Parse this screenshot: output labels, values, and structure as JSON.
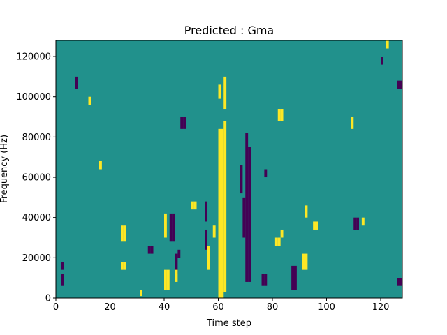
{
  "chart_data": {
    "type": "heatmap",
    "title": "Predicted : Gma",
    "xlabel": "Time step",
    "ylabel": "Frequency (Hz)",
    "xlim": [
      0,
      128
    ],
    "ylim": [
      0,
      128000
    ],
    "x_ticks": [
      0,
      20,
      40,
      60,
      80,
      100,
      120
    ],
    "y_ticks": [
      0,
      20000,
      40000,
      60000,
      80000,
      100000,
      120000
    ],
    "grid": false,
    "colormap": "viridis",
    "value_scale": "three discrete levels: low (dark purple), mid (teal, background), high (yellow)",
    "colors": {
      "low": "#440154",
      "mid": "#21918c",
      "high": "#fde725"
    },
    "background_level": "mid",
    "segments_note": "Each segment is [time_step, start_frequency_Hz, end_frequency_Hz, level]; cells not listed are mid level.",
    "segments": [
      [
        60,
        0,
        84000,
        "high"
      ],
      [
        61,
        0,
        84000,
        "high"
      ],
      [
        62,
        3000,
        88000,
        "high"
      ],
      [
        60,
        99000,
        106000,
        "high"
      ],
      [
        62,
        94000,
        110000,
        "high"
      ],
      [
        70,
        8000,
        82000,
        "low"
      ],
      [
        71,
        8000,
        75000,
        "low"
      ],
      [
        68,
        52000,
        66000,
        "low"
      ],
      [
        69,
        30000,
        50000,
        "low"
      ],
      [
        42,
        28000,
        42000,
        "low"
      ],
      [
        43,
        28000,
        42000,
        "low"
      ],
      [
        44,
        12000,
        22000,
        "low"
      ],
      [
        45,
        20000,
        24000,
        "low"
      ],
      [
        34,
        22000,
        26000,
        "low"
      ],
      [
        35,
        22000,
        26000,
        "low"
      ],
      [
        40,
        4000,
        14000,
        "high"
      ],
      [
        41,
        4000,
        14000,
        "high"
      ],
      [
        44,
        8000,
        14000,
        "high"
      ],
      [
        40,
        30000,
        42000,
        "high"
      ],
      [
        24,
        14000,
        18000,
        "high"
      ],
      [
        25,
        14000,
        18000,
        "high"
      ],
      [
        24,
        28000,
        36000,
        "high"
      ],
      [
        25,
        28000,
        36000,
        "high"
      ],
      [
        46,
        84000,
        90000,
        "low"
      ],
      [
        47,
        84000,
        90000,
        "low"
      ],
      [
        76,
        6000,
        12000,
        "low"
      ],
      [
        77,
        6000,
        12000,
        "low"
      ],
      [
        77,
        60000,
        64000,
        "low"
      ],
      [
        87,
        4000,
        16000,
        "low"
      ],
      [
        88,
        4000,
        16000,
        "low"
      ],
      [
        82,
        88000,
        94000,
        "high"
      ],
      [
        83,
        88000,
        94000,
        "high"
      ],
      [
        95,
        34000,
        38000,
        "high"
      ],
      [
        96,
        34000,
        38000,
        "high"
      ],
      [
        91,
        14000,
        22000,
        "high"
      ],
      [
        92,
        14000,
        22000,
        "high"
      ],
      [
        81,
        26000,
        30000,
        "high"
      ],
      [
        82,
        26000,
        30000,
        "high"
      ],
      [
        83,
        30000,
        34000,
        "high"
      ],
      [
        110,
        34000,
        40000,
        "low"
      ],
      [
        111,
        34000,
        40000,
        "low"
      ],
      [
        126,
        6000,
        10000,
        "low"
      ],
      [
        127,
        6000,
        10000,
        "low"
      ],
      [
        113,
        36000,
        40000,
        "high"
      ],
      [
        2,
        6000,
        12000,
        "low"
      ],
      [
        2,
        14000,
        18000,
        "low"
      ],
      [
        7,
        104000,
        110000,
        "low"
      ],
      [
        12,
        96000,
        100000,
        "high"
      ],
      [
        31,
        1000,
        4000,
        "high"
      ],
      [
        16,
        64000,
        68000,
        "high"
      ],
      [
        126,
        104000,
        108000,
        "low"
      ],
      [
        127,
        104000,
        108000,
        "low"
      ],
      [
        55,
        24000,
        34000,
        "low"
      ],
      [
        55,
        38000,
        48000,
        "low"
      ],
      [
        50,
        44000,
        48000,
        "high"
      ],
      [
        51,
        44000,
        48000,
        "high"
      ],
      [
        92,
        40000,
        46000,
        "high"
      ],
      [
        109,
        84000,
        90000,
        "high"
      ],
      [
        120,
        116000,
        120000,
        "low"
      ],
      [
        122,
        124000,
        128000,
        "high"
      ],
      [
        56,
        14000,
        26000,
        "high"
      ],
      [
        58,
        30000,
        36000,
        "high"
      ]
    ]
  }
}
